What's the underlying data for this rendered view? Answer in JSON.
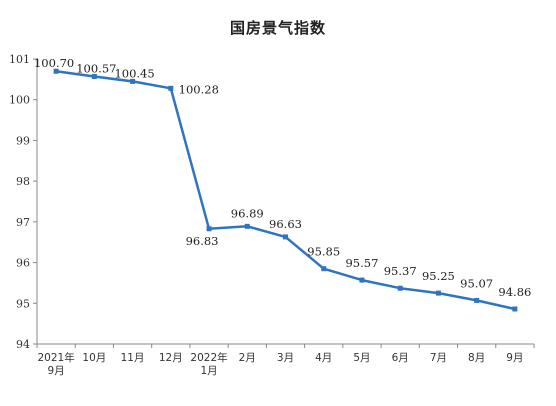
{
  "chart_data": {
    "type": "line",
    "title": "国房景气指数",
    "xlabel": "",
    "ylabel": "",
    "categories": [
      [
        "2021年",
        "9月"
      ],
      [
        "10月"
      ],
      [
        "11月"
      ],
      [
        "12月"
      ],
      [
        "2022年",
        "1月"
      ],
      [
        "2月"
      ],
      [
        "3月"
      ],
      [
        "4月"
      ],
      [
        "5月"
      ],
      [
        "6月"
      ],
      [
        "7月"
      ],
      [
        "8月"
      ],
      [
        "9月"
      ]
    ],
    "values": [
      100.7,
      100.57,
      100.45,
      100.28,
      96.83,
      96.89,
      96.63,
      95.85,
      95.57,
      95.37,
      95.25,
      95.07,
      94.86
    ],
    "value_labels": [
      "100.70",
      "100.57",
      "100.45",
      "100.28",
      "96.83",
      "96.89",
      "96.63",
      "95.85",
      "95.57",
      "95.37",
      "95.25",
      "95.07",
      "94.86"
    ],
    "ylim": [
      94,
      101
    ],
    "yticks": [
      94,
      95,
      96,
      97,
      98,
      99,
      100,
      101
    ],
    "grid": false,
    "legend": "none",
    "line_color": "#2e74c0",
    "axis_color": "#888888"
  }
}
